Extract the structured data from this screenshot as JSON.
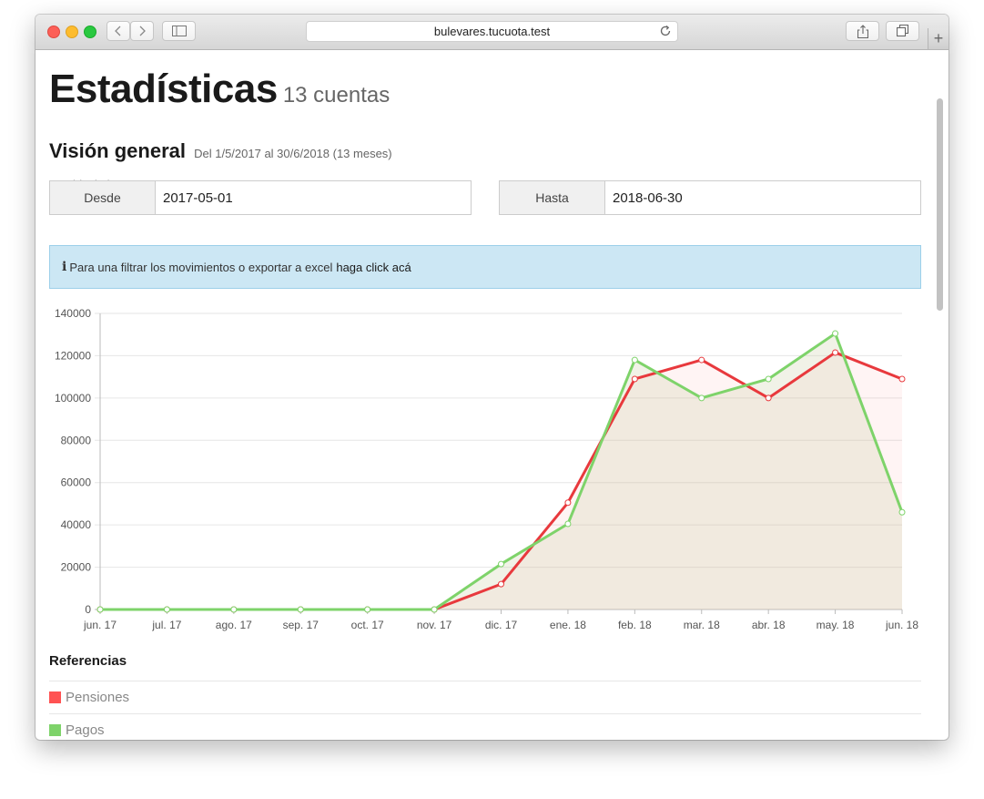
{
  "browser": {
    "url": "bulevares.tucuota.test"
  },
  "page": {
    "title": "Estadísticas",
    "title_count": "13 cuentas",
    "subtitle": "Visión general",
    "subtitle_range": "Del 1/5/2017 al 30/6/2018 (13 meses)",
    "establishment_label": "Establecimiento",
    "from_label": "Desde",
    "from_value": "2017-05-01",
    "to_label": "Hasta",
    "to_value": "2018-06-30",
    "alert_text": "Para una filtrar los movimientos o exportar a excel",
    "alert_link": "haga click acá",
    "refs_title": "Referencias"
  },
  "chart_data": {
    "type": "line",
    "categories": [
      "jun. 17",
      "jul. 17",
      "ago. 17",
      "sep. 17",
      "oct. 17",
      "nov. 17",
      "dic. 17",
      "ene. 18",
      "feb. 18",
      "mar. 18",
      "abr. 18",
      "may. 18",
      "jun. 18"
    ],
    "ylim": [
      0,
      140000
    ],
    "yticks": [
      0,
      20000,
      40000,
      60000,
      80000,
      100000,
      120000,
      140000
    ],
    "grid": true,
    "series": [
      {
        "name": "Pensiones",
        "color": "#e8393d",
        "fill": "rgba(255,99,99,0.07)",
        "values": [
          0,
          0,
          0,
          0,
          0,
          0,
          12000,
          50500,
          109000,
          118000,
          100000,
          121500,
          109000
        ]
      },
      {
        "name": "Pagos",
        "color": "#7ed36a",
        "fill": "rgba(205,210,170,0.28)",
        "values": [
          0,
          0,
          0,
          0,
          0,
          0,
          21500,
          40500,
          118000,
          100000,
          109000,
          130500,
          46000
        ]
      }
    ]
  },
  "legend": [
    {
      "name": "Pensiones",
      "color": "#ff5252"
    },
    {
      "name": "Pagos",
      "color": "#7ed36a"
    }
  ]
}
